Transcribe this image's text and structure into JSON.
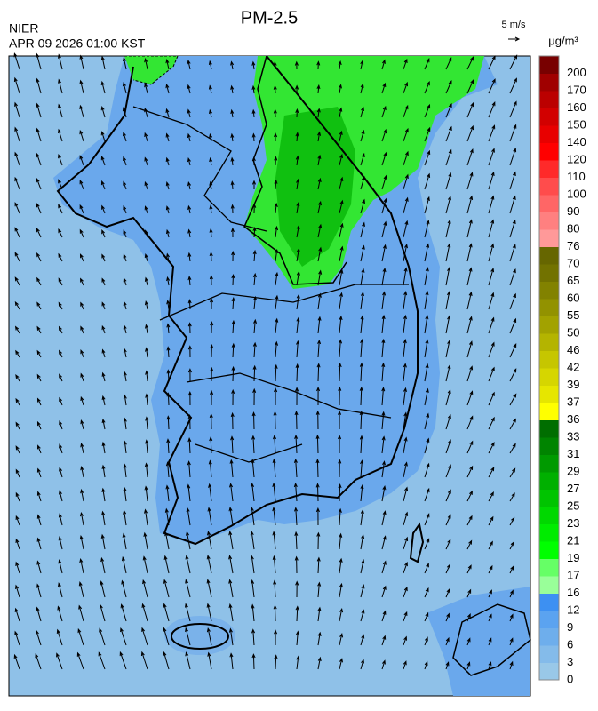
{
  "header": {
    "title": "PM-2.5",
    "agency": "NIER",
    "datetime": "APR 09 2026 01:00 KST"
  },
  "wind_scale": {
    "label": "5 m/s"
  },
  "colorbar": {
    "unit": "μg/m³",
    "segments": [
      {
        "label": 0,
        "color": "#99c8e8"
      },
      {
        "label": 3,
        "color": "#84bbea"
      },
      {
        "label": 6,
        "color": "#6eaeec"
      },
      {
        "label": 9,
        "color": "#5ba3f0"
      },
      {
        "label": 12,
        "color": "#3d90f2"
      },
      {
        "label": 16,
        "color": "#99ff99"
      },
      {
        "label": 17,
        "color": "#66ff66"
      },
      {
        "label": 19,
        "color": "#00ff00"
      },
      {
        "label": 21,
        "color": "#00ec00"
      },
      {
        "label": 23,
        "color": "#00d800"
      },
      {
        "label": 25,
        "color": "#00c400"
      },
      {
        "label": 27,
        "color": "#00b000"
      },
      {
        "label": 29,
        "color": "#009a00"
      },
      {
        "label": 31,
        "color": "#008400"
      },
      {
        "label": 33,
        "color": "#006e00"
      },
      {
        "label": 36,
        "color": "#ffff00"
      },
      {
        "label": 37,
        "color": "#e6e600"
      },
      {
        "label": 39,
        "color": "#d6d600"
      },
      {
        "label": 42,
        "color": "#c6c600"
      },
      {
        "label": 46,
        "color": "#b4b400"
      },
      {
        "label": 50,
        "color": "#a2a200"
      },
      {
        "label": 55,
        "color": "#929200"
      },
      {
        "label": 60,
        "color": "#828200"
      },
      {
        "label": 65,
        "color": "#727200"
      },
      {
        "label": 70,
        "color": "#666600"
      },
      {
        "label": 76,
        "color": "#ff9999"
      },
      {
        "label": 80,
        "color": "#ff8080"
      },
      {
        "label": 90,
        "color": "#ff6666"
      },
      {
        "label": 100,
        "color": "#ff4c4c"
      },
      {
        "label": 110,
        "color": "#ff2a2a"
      },
      {
        "label": 120,
        "color": "#ff0000"
      },
      {
        "label": 140,
        "color": "#e80000"
      },
      {
        "label": 150,
        "color": "#d20000"
      },
      {
        "label": 160,
        "color": "#bb0000"
      },
      {
        "label": 170,
        "color": "#a00000"
      },
      {
        "label": 200,
        "color": "#780000"
      }
    ]
  }
}
